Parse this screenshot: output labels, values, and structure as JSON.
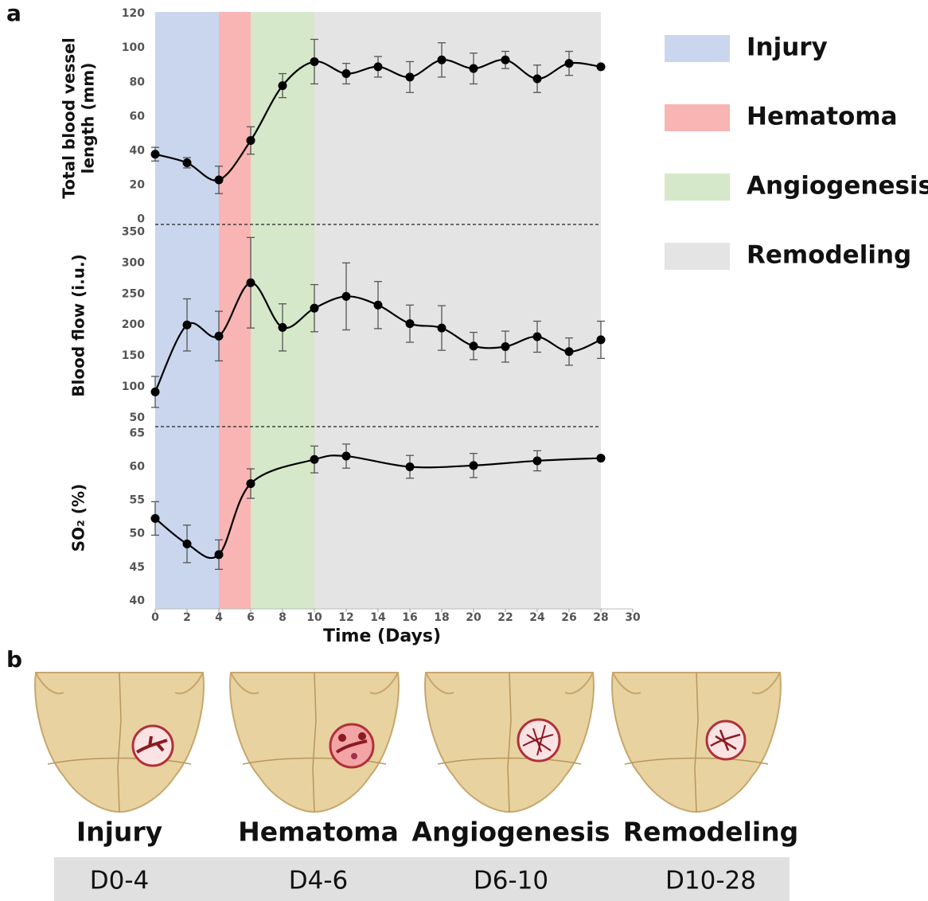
{
  "panel_labels": [
    "a",
    "b"
  ],
  "phases": [
    {
      "name": "Injury",
      "color": "#c9d6ee",
      "start": 0,
      "end": 4
    },
    {
      "name": "Hematoma",
      "color": "#f9b4b4",
      "start": 4,
      "end": 6
    },
    {
      "name": "Angiogenesis",
      "color": "#d5e8c9",
      "start": 6,
      "end": 10
    },
    {
      "name": "Remodeling",
      "color": "#e4e4e4",
      "start": 10,
      "end": 28
    }
  ],
  "chart_data": [
    {
      "type": "line",
      "ylabel": [
        "Total blood vessel",
        "length (mm)"
      ],
      "color": "#000000",
      "x": [
        0,
        2,
        4,
        6,
        8,
        10,
        12,
        14,
        16,
        18,
        20,
        22,
        24,
        26,
        28
      ],
      "values": [
        38,
        33,
        23,
        46,
        78,
        92,
        85,
        89,
        83,
        93,
        88,
        93,
        82,
        91,
        89
      ],
      "errors": [
        4,
        3,
        8,
        8,
        7,
        13,
        6,
        6,
        9,
        10,
        9,
        5,
        8,
        7,
        null
      ],
      "xlim": [
        0,
        30
      ],
      "ylim": [
        -3,
        121
      ],
      "yticks": [
        0,
        20,
        40,
        60,
        80,
        100,
        120
      ]
    },
    {
      "type": "line",
      "ylabel": [
        "Blood flow (i.u.)"
      ],
      "color": "#000000",
      "x": [
        0,
        2,
        4,
        6,
        8,
        10,
        12,
        14,
        16,
        18,
        20,
        22,
        24,
        26,
        28
      ],
      "values": [
        92,
        200,
        182,
        268,
        196,
        227,
        246,
        232,
        202,
        195,
        166,
        165,
        181,
        157,
        176
      ],
      "errors": [
        25,
        42,
        40,
        73,
        38,
        38,
        54,
        38,
        30,
        36,
        22,
        25,
        25,
        22,
        30
      ],
      "xlim": [
        0,
        30
      ],
      "ylim": [
        36,
        362
      ],
      "yticks": [
        50,
        100,
        150,
        200,
        250,
        300,
        350
      ]
    },
    {
      "type": "line",
      "ylabel": [
        "SO₂ (%)"
      ],
      "xlabel": "Time (Days)",
      "color": "#000000",
      "x": [
        0,
        2,
        4,
        6,
        10,
        12,
        16,
        20,
        24,
        28
      ],
      "values": [
        52.3,
        48.5,
        46.9,
        57.5,
        61.1,
        61.6,
        60.0,
        60.2,
        60.9,
        61.3
      ],
      "errors": [
        2.5,
        2.8,
        2.2,
        2.2,
        2.0,
        1.8,
        1.7,
        1.8,
        1.5,
        null
      ],
      "xlim": [
        0,
        30
      ],
      "ylim": [
        38.8,
        66
      ],
      "yticks": [
        40,
        45,
        50,
        55,
        60,
        65
      ],
      "xticks": [
        0,
        2,
        4,
        6,
        8,
        10,
        12,
        14,
        16,
        18,
        20,
        22,
        24,
        26,
        28,
        30
      ]
    }
  ],
  "panel_b": {
    "stages": [
      {
        "label": "Injury",
        "days": "D0-4"
      },
      {
        "label": "Hematoma",
        "days": "D4-6"
      },
      {
        "label": "Angiogenesis",
        "days": "D6-10"
      },
      {
        "label": "Remodeling",
        "days": "D10-28"
      }
    ]
  }
}
